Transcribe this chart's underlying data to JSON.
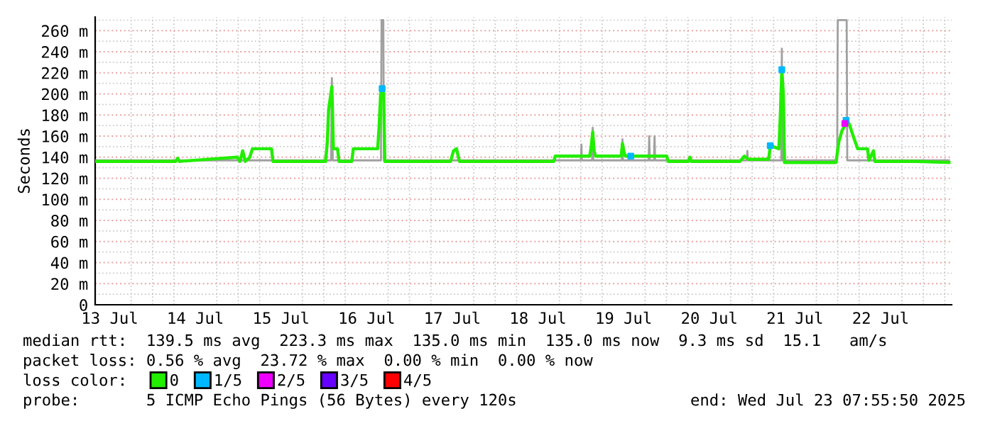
{
  "chart_data": {
    "type": "line",
    "ylabel": "Seconds",
    "xlim": [
      "2025-07-13T07:55",
      "2025-07-23T07:55"
    ],
    "xticks": [
      {
        "value": "2025-07-13T12:00",
        "label": "13 Jul"
      },
      {
        "value": "2025-07-14T12:00",
        "label": "14 Jul"
      },
      {
        "value": "2025-07-15T12:00",
        "label": "15 Jul"
      },
      {
        "value": "2025-07-16T12:00",
        "label": "16 Jul"
      },
      {
        "value": "2025-07-17T12:00",
        "label": "17 Jul"
      },
      {
        "value": "2025-07-18T12:00",
        "label": "18 Jul"
      },
      {
        "value": "2025-07-19T12:00",
        "label": "19 Jul"
      },
      {
        "value": "2025-07-20T12:00",
        "label": "20 Jul"
      },
      {
        "value": "2025-07-21T12:00",
        "label": "21 Jul"
      },
      {
        "value": "2025-07-22T12:00",
        "label": "22 Jul"
      }
    ],
    "ylim": [
      0,
      273
    ],
    "yticks": [
      0,
      {
        "value": 20,
        "label": "20 m"
      },
      {
        "value": 40,
        "label": "40 m"
      },
      {
        "value": 60,
        "label": "60 m"
      },
      {
        "value": 80,
        "label": "80 m"
      },
      {
        "value": 100,
        "label": "100 m"
      },
      {
        "value": 120,
        "label": "120 m"
      },
      {
        "value": 140,
        "label": "140 m"
      },
      {
        "value": 160,
        "label": "160 m"
      },
      {
        "value": 180,
        "label": "180 m"
      },
      {
        "value": 200,
        "label": "200 m"
      },
      {
        "value": 220,
        "label": "220 m"
      },
      {
        "value": 240,
        "label": "240 m"
      },
      {
        "value": 260,
        "label": "260 m"
      }
    ],
    "grid": true,
    "legend": "bottom",
    "series": [
      {
        "color": "#a0a0a0",
        "x": [
          "2025-07-13T08:00",
          "2025-07-16T02:00",
          "2025-07-16T02:15",
          "2025-07-16T02:30",
          "2025-07-16T16:00",
          "2025-07-16T16:10",
          "2025-07-16T16:40",
          "2025-07-16T16:50",
          "2025-07-19T00:00",
          "2025-07-19T00:10",
          "2025-07-19T00:20",
          "2025-07-19T03:10",
          "2025-07-19T03:20",
          "2025-07-19T03:30",
          "2025-07-19T11:30",
          "2025-07-19T11:40",
          "2025-07-19T11:50",
          "2025-07-19T19:00",
          "2025-07-19T19:10",
          "2025-07-19T19:20",
          "2025-07-19T20:30",
          "2025-07-19T20:40",
          "2025-07-19T20:50",
          "2025-07-20T22:30",
          "2025-07-20T22:40",
          "2025-07-20T22:50",
          "2025-07-21T08:10",
          "2025-07-21T08:20",
          "2025-07-21T08:30",
          "2025-07-21T23:50",
          "2025-07-22T00:00",
          "2025-07-22T02:30",
          "2025-07-22T02:40",
          "2025-07-23T07:10"
        ],
        "values": [
          137,
          137,
          215,
          137,
          137,
          270,
          270,
          137,
          137,
          152,
          137,
          137,
          168,
          137,
          137,
          157,
          137,
          137,
          160,
          137,
          137,
          160,
          137,
          137,
          146,
          137,
          137,
          243,
          137,
          137,
          270,
          270,
          137,
          137
        ]
      },
      {
        "name": "0",
        "color": "#22ee00",
        "x": [
          "2025-07-13T08:00",
          "2025-07-14T06:30",
          "2025-07-14T07:00",
          "2025-07-14T07:30",
          "2025-07-14T23:45",
          "2025-07-15T00:30",
          "2025-07-15T01:15",
          "2025-07-15T02:00",
          "2025-07-15T03:15",
          "2025-07-15T04:00",
          "2025-07-15T09:20",
          "2025-07-15T09:45",
          "2025-07-16T00:30",
          "2025-07-16T01:00",
          "2025-07-16T01:20",
          "2025-07-16T02:15",
          "2025-07-16T02:40",
          "2025-07-16T03:50",
          "2025-07-16T04:15",
          "2025-07-16T07:50",
          "2025-07-16T08:15",
          "2025-07-16T15:05",
          "2025-07-16T15:30",
          "2025-07-16T15:55",
          "2025-07-16T16:20",
          "2025-07-16T16:45",
          "2025-07-16T17:05",
          "2025-07-17T11:30",
          "2025-07-17T12:20",
          "2025-07-17T13:10",
          "2025-07-17T14:00",
          "2025-07-18T16:25",
          "2025-07-18T16:50",
          "2025-07-19T02:30",
          "2025-07-19T02:55",
          "2025-07-19T03:20",
          "2025-07-19T03:45",
          "2025-07-19T04:10",
          "2025-07-19T11:20",
          "2025-07-19T11:40",
          "2025-07-19T12:05",
          "2025-07-19T12:30",
          "2025-07-20T00:05",
          "2025-07-20T00:30",
          "2025-07-20T06:10",
          "2025-07-20T06:35",
          "2025-07-20T07:00",
          "2025-07-20T20:35",
          "2025-07-20T21:50",
          "2025-07-20T23:00",
          "2025-07-21T04:40",
          "2025-07-21T05:05",
          "2025-07-21T07:30",
          "2025-07-21T07:55",
          "2025-07-21T08:20",
          "2025-07-21T08:45",
          "2025-07-21T09:05",
          "2025-07-21T23:30",
          "2025-07-22T00:20",
          "2025-07-22T01:10",
          "2025-07-22T02:20",
          "2025-07-22T03:10",
          "2025-07-22T04:20",
          "2025-07-22T05:35",
          "2025-07-22T08:20",
          "2025-07-22T08:45",
          "2025-07-22T10:00",
          "2025-07-22T10:25",
          "2025-07-22T22:00",
          "2025-07-23T07:10"
        ],
        "values": [
          136,
          136,
          139,
          136,
          140,
          136,
          146,
          136,
          140,
          148,
          148,
          136,
          136,
          156,
          185,
          207,
          148,
          148,
          136,
          136,
          148,
          148,
          170,
          200,
          205,
          200,
          136,
          136,
          146,
          148,
          136,
          136,
          141,
          141,
          150,
          164,
          145,
          141,
          141,
          153,
          145,
          141,
          141,
          136,
          136,
          140,
          136,
          136,
          141,
          138,
          138,
          151,
          148,
          180,
          223,
          200,
          135,
          135,
          155,
          165,
          172,
          172,
          160,
          148,
          148,
          137,
          146,
          136,
          136,
          135
        ]
      },
      {
        "type": "scatter",
        "name": "1/5",
        "color": "#00b8ff",
        "x": [
          "2025-07-16T16:20",
          "2025-07-19T14:00",
          "2025-07-21T05:05",
          "2025-07-21T08:20",
          "2025-07-22T02:20"
        ],
        "values": [
          205,
          141,
          151,
          223,
          175
        ]
      },
      {
        "type": "scatter",
        "name": "2/5",
        "color": "#ee00ff",
        "x": [
          "2025-07-22T02:00"
        ],
        "values": [
          172
        ]
      },
      {
        "type": "scatter",
        "name": "3/5",
        "color": "#6600ff"
      },
      {
        "type": "scatter",
        "name": "4/5",
        "color": "#ff0000"
      }
    ],
    "annotations": [
      "median rtt:  139.5 ms avg  223.3 ms max  135.0 ms min  135.0 ms now  9.3 ms sd  15.1   am/s",
      "packet loss: 0.56 % avg  23.72 % max  0.00 % min  0.00 % now",
      "loss color:",
      "probe:       5 ICMP Echo Pings (56 Bytes) every 120s",
      "end: Wed Jul 23 07:55:50 2025"
    ]
  }
}
